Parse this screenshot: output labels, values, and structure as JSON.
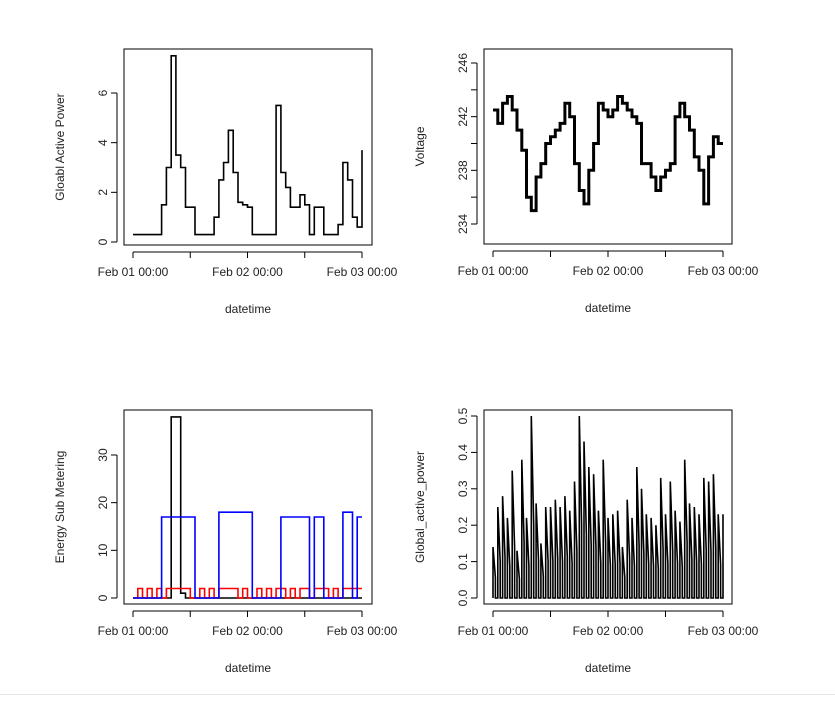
{
  "x": [
    "Feb 01 00:00",
    "Feb 01 01:00",
    "Feb 01 02:00",
    "Feb 01 03:00",
    "Feb 01 04:00",
    "Feb 01 05:00",
    "Feb 01 06:00",
    "Feb 01 07:00",
    "Feb 01 08:00",
    "Feb 01 09:00",
    "Feb 01 10:00",
    "Feb 01 11:00",
    "Feb 01 12:00",
    "Feb 01 13:00",
    "Feb 01 14:00",
    "Feb 01 15:00",
    "Feb 01 16:00",
    "Feb 01 17:00",
    "Feb 01 18:00",
    "Feb 01 19:00",
    "Feb 01 20:00",
    "Feb 01 21:00",
    "Feb 01 22:00",
    "Feb 01 23:00",
    "Feb 02 00:00",
    "Feb 02 01:00",
    "Feb 02 02:00",
    "Feb 02 03:00",
    "Feb 02 04:00",
    "Feb 02 05:00",
    "Feb 02 06:00",
    "Feb 02 07:00",
    "Feb 02 08:00",
    "Feb 02 09:00",
    "Feb 02 10:00",
    "Feb 02 11:00",
    "Feb 02 12:00",
    "Feb 02 13:00",
    "Feb 02 14:00",
    "Feb 02 15:00",
    "Feb 02 16:00",
    "Feb 02 17:00",
    "Feb 02 18:00",
    "Feb 02 19:00",
    "Feb 02 20:00",
    "Feb 02 21:00",
    "Feb 02 22:00",
    "Feb 02 23:00",
    "Feb 03 00:00"
  ],
  "chart_data": [
    {
      "type": "line",
      "xlabel": "datetime",
      "ylabel": "Gloabl Active Power",
      "x_tick_labels": [
        "Feb 01 00:00",
        "Feb 02 00:00",
        "Feb 03 00:00"
      ],
      "y_tick_labels": [
        "0",
        "2",
        "4",
        "6"
      ],
      "ylim": [
        0,
        7.6
      ],
      "series": [
        {
          "color": "#000000",
          "values": [
            0.3,
            0.3,
            0.3,
            0.3,
            0.3,
            0.3,
            1.5,
            3.0,
            7.5,
            3.5,
            3.0,
            1.4,
            1.4,
            0.3,
            0.3,
            0.3,
            0.3,
            1.0,
            2.5,
            3.2,
            4.5,
            2.8,
            1.6,
            1.5,
            1.4,
            0.3,
            0.3,
            0.3,
            0.3,
            0.3,
            5.5,
            2.8,
            2.2,
            1.4,
            1.4,
            1.9,
            1.5,
            0.3,
            1.4,
            1.4,
            0.3,
            0.3,
            0.3,
            0.7,
            3.2,
            2.5,
            1.0,
            0.6,
            3.7
          ]
        }
      ]
    },
    {
      "type": "line",
      "xlabel": "datetime",
      "ylabel": "Voltage",
      "x_tick_labels": [
        "Feb 01 00:00",
        "Feb 02 00:00",
        "Feb 03 00:00"
      ],
      "y_tick_labels": [
        "234",
        "238",
        "242",
        "246"
      ],
      "ylim": [
        233,
        246.5
      ],
      "series": [
        {
          "color": "#000000",
          "values": [
            242.5,
            241.5,
            243,
            243.5,
            242.5,
            241,
            239.5,
            236,
            235,
            237.5,
            238.5,
            240,
            240.5,
            241,
            241.5,
            243,
            242,
            238.5,
            236.5,
            235.5,
            238,
            240,
            243,
            242.5,
            242,
            242.5,
            243.5,
            243,
            242.5,
            242,
            241.5,
            238.5,
            238.5,
            237.5,
            236.5,
            237.5,
            238,
            238.5,
            242,
            243,
            242,
            241,
            239,
            238,
            235.5,
            239,
            240.5,
            240,
            240
          ]
        }
      ]
    },
    {
      "type": "line",
      "xlabel": "datetime",
      "ylabel": "Energy Sub Metering",
      "x_tick_labels": [
        "Feb 01 00:00",
        "Feb 02 00:00",
        "Feb 03 00:00"
      ],
      "y_tick_labels": [
        "0",
        "10",
        "20",
        "30"
      ],
      "ylim": [
        0,
        38
      ],
      "series": [
        {
          "color": "#000000",
          "values": [
            0,
            0,
            0,
            0,
            0,
            0,
            0,
            0,
            38,
            38,
            1,
            0,
            0,
            0,
            0,
            0,
            0,
            0,
            0,
            0,
            0,
            0,
            0,
            0,
            0,
            0,
            0,
            0,
            0,
            0,
            0,
            0,
            0,
            0,
            0,
            0,
            0,
            0,
            0,
            0,
            0,
            0,
            0,
            0,
            0,
            0,
            0,
            0,
            0
          ]
        },
        {
          "color": "#ff0000",
          "values": [
            0,
            2,
            0,
            2,
            0,
            2,
            0,
            2,
            2,
            2,
            2,
            2,
            0,
            0,
            2,
            0,
            2,
            0,
            2,
            2,
            2,
            2,
            0,
            2,
            0,
            0,
            2,
            0,
            2,
            0,
            2,
            2,
            0,
            2,
            0,
            2,
            2,
            0,
            2,
            2,
            2,
            0,
            2,
            0,
            2,
            2,
            2,
            2,
            2
          ]
        },
        {
          "color": "#0000ff",
          "values": [
            0,
            0,
            0,
            0,
            0,
            0,
            17,
            17,
            17,
            17,
            17,
            17,
            17,
            0,
            0,
            0,
            0,
            0,
            18,
            18,
            18,
            18,
            18,
            18,
            18,
            0,
            0,
            0,
            0,
            0,
            0,
            17,
            17,
            17,
            17,
            17,
            17,
            0,
            17,
            17,
            0,
            0,
            0,
            0,
            18,
            18,
            0,
            17,
            17
          ]
        }
      ]
    },
    {
      "type": "line",
      "xlabel": "datetime",
      "ylabel": "Global_active_power",
      "x_tick_labels": [
        "Feb 01 00:00",
        "Feb 02 00:00",
        "Feb 03 00:00"
      ],
      "y_tick_labels": [
        "0.0",
        "0.1",
        "0.2",
        "0.3",
        "0.4",
        "0.5"
      ],
      "ylim": [
        0,
        0.5
      ],
      "series": [
        {
          "color": "#000000",
          "values": [
            0.14,
            0.25,
            0.28,
            0.22,
            0.35,
            0.13,
            0.38,
            0.22,
            0.5,
            0.26,
            0.15,
            0.25,
            0.25,
            0.27,
            0.25,
            0.28,
            0.24,
            0.32,
            0.5,
            0.43,
            0.36,
            0.34,
            0.24,
            0.38,
            0.22,
            0.23,
            0.24,
            0.14,
            0.27,
            0.22,
            0.36,
            0.3,
            0.23,
            0.22,
            0.2,
            0.33,
            0.23,
            0.32,
            0.24,
            0.21,
            0.38,
            0.26,
            0.25,
            0.23,
            0.33,
            0.32,
            0.34,
            0.23,
            0.23
          ]
        }
      ]
    }
  ]
}
